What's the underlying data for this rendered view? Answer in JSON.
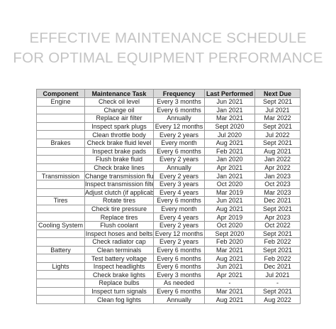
{
  "title": {
    "line1": "EFFECTIVE MAINTENANCE SCHEDULE",
    "line2": "FOR OPTIMAL EQUIPMENT PERFORMANCE"
  },
  "table": {
    "headers": [
      "Component",
      "Maintenance Task",
      "Frequency",
      "Last Performed",
      "Next Due"
    ],
    "rows": [
      [
        "Engine",
        "Check oil level",
        "Every 3 months",
        "Jun 2021",
        "Sept 2021"
      ],
      [
        "",
        "Change oil",
        "Every 6 months",
        "Jan 2021",
        "Jul 2021"
      ],
      [
        "",
        "Replace air filter",
        "Annually",
        "Mar 2021",
        "Mar 2022"
      ],
      [
        "",
        "Inspect spark plugs",
        "Every 12 months",
        "Sept 2020",
        "Sept 2021"
      ],
      [
        "",
        "Clean throttle body",
        "Every 2 years",
        "Jul 2020",
        "Jul 2022"
      ],
      [
        "Brakes",
        "Check brake fluid level",
        "Every month",
        "Aug 2021",
        "Sept 2021"
      ],
      [
        "",
        "Inspect brake pads",
        "Every 6 months",
        "Feb 2021",
        "Aug 2021"
      ],
      [
        "",
        "Flush brake fluid",
        "Every 2 years",
        "Jan 2020",
        "Jan 2022"
      ],
      [
        "",
        "Check brake lines",
        "Annually",
        "Apr 2021",
        "Apr 2022"
      ],
      [
        "Transmission",
        "Change transmission fluid",
        "Every 2 years",
        "Jan 2021",
        "Jan 2023"
      ],
      [
        "",
        "Inspect transmission filter",
        "Every 3 years",
        "Oct 2020",
        "Oct 2023"
      ],
      [
        "",
        "Adjust clutch (if applicable)",
        "Every 4 years",
        "Mar 2019",
        "Mar 2023"
      ],
      [
        "Tires",
        "Rotate tires",
        "Every 6 months",
        "Jun 2021",
        "Dec 2021"
      ],
      [
        "",
        "Check tire pressure",
        "Every month",
        "Aug 2021",
        "Sept 2021"
      ],
      [
        "",
        "Replace tires",
        "Every 4 years",
        "Apr 2019",
        "Apr 2023"
      ],
      [
        "Cooling System",
        "Flush coolant",
        "Every 2 years",
        "Oct 2020",
        "Oct 2022"
      ],
      [
        "",
        "Inspect hoses and belts",
        "Every 12 months",
        "Sept 2020",
        "Sept 2021"
      ],
      [
        "",
        "Check radiator cap",
        "Every 2 years",
        "Feb 2020",
        "Feb 2022"
      ],
      [
        "Battery",
        "Clean terminals",
        "Every 6 months",
        "Mar 2021",
        "Sept 2021"
      ],
      [
        "",
        "Test battery voltage",
        "Every 6 months",
        "Aug 2021",
        "Feb 2022"
      ],
      [
        "Lights",
        "Inspect headlights",
        "Every 6 months",
        "Jun 2021",
        "Dec 2021"
      ],
      [
        "",
        "Check brake lights",
        "Every 3 months",
        "Apr 2021",
        "Jul 2021"
      ],
      [
        "",
        "Replace bulbs",
        "As needed",
        "-",
        "-"
      ],
      [
        "",
        "Inspect turn signals",
        "Every 6 months",
        "Mar 2021",
        "Sept 2021"
      ],
      [
        "",
        "Clean fog lights",
        "Annually",
        "Aug 2021",
        "Aug 2022"
      ]
    ]
  }
}
